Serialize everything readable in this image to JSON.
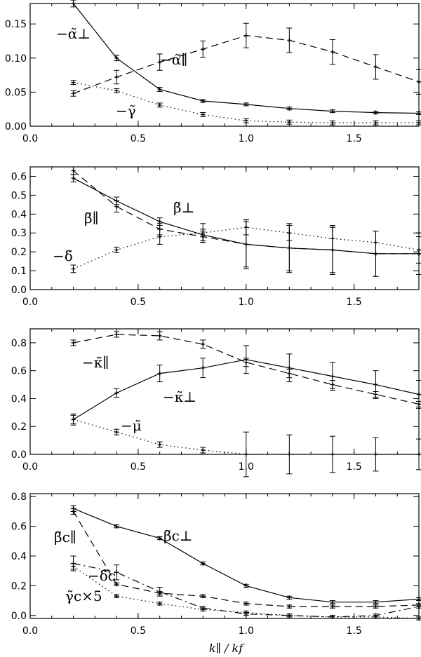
{
  "figure": {
    "xlabel": "k∥ / kf"
  },
  "chart_data": [
    {
      "type": "line",
      "xlim": [
        0.0,
        1.8
      ],
      "ylim": [
        0.0,
        0.18
      ],
      "xticks": [
        0.0,
        0.5,
        1.0,
        1.5
      ],
      "yticks": [
        0.0,
        0.05,
        0.1,
        0.15
      ],
      "ytick_labels": [
        "0.00",
        "0.05",
        "0.10",
        "0.15"
      ],
      "xtick_labels": [
        "0.0",
        "0.5",
        "1.0",
        "1.5"
      ],
      "x": [
        0.2,
        0.4,
        0.6,
        0.8,
        1.0,
        1.2,
        1.4,
        1.6,
        1.8
      ],
      "series": [
        {
          "name": "−α̃⊥",
          "style": "solid",
          "values": [
            0.18,
            0.1,
            0.054,
            0.037,
            0.032,
            0.026,
            0.022,
            0.02,
            0.019
          ],
          "errors": [
            0.005,
            0.004,
            0.003,
            0.002,
            0.002,
            0.002,
            0.002,
            0.002,
            0.002
          ]
        },
        {
          "name": "−α̃∥",
          "style": "dashed",
          "values": [
            0.048,
            0.072,
            0.094,
            0.113,
            0.133,
            0.126,
            0.109,
            0.087,
            0.065
          ],
          "errors": [
            0.004,
            0.01,
            0.012,
            0.012,
            0.018,
            0.018,
            0.018,
            0.018,
            0.018
          ]
        },
        {
          "name": "−γ̃",
          "style": "dotted",
          "values": [
            0.064,
            0.052,
            0.031,
            0.017,
            0.008,
            0.006,
            0.005,
            0.005,
            0.005
          ],
          "errors": [
            0.003,
            0.003,
            0.003,
            0.003,
            0.003,
            0.003,
            0.003,
            0.003,
            0.003
          ]
        }
      ],
      "annotations": [
        "−α̃⊥",
        "−α̃∥",
        "−γ̃"
      ]
    },
    {
      "type": "line",
      "xlim": [
        0.0,
        1.8
      ],
      "ylim": [
        0.0,
        0.65
      ],
      "xticks": [
        0.0,
        0.5,
        1.0,
        1.5
      ],
      "yticks": [
        0.0,
        0.1,
        0.2,
        0.3,
        0.4,
        0.5,
        0.6
      ],
      "ytick_labels": [
        "0.0",
        "0.1",
        "0.2",
        "0.3",
        "0.4",
        "0.5",
        "0.6"
      ],
      "xtick_labels": [
        "0.0",
        "0.5",
        "1.0",
        "1.5"
      ],
      "x": [
        0.2,
        0.4,
        0.6,
        0.8,
        1.0,
        1.2,
        1.4,
        1.6,
        1.8
      ],
      "series": [
        {
          "name": "β̃⊥",
          "style": "solid",
          "values": [
            0.59,
            0.47,
            0.36,
            0.29,
            0.24,
            0.22,
            0.21,
            0.19,
            0.19
          ],
          "errors": [
            0.02,
            0.02,
            0.02,
            0.03,
            0.13,
            0.13,
            0.13,
            0.12,
            0.11
          ]
        },
        {
          "name": "β̃∥",
          "style": "dashed",
          "values": [
            0.63,
            0.44,
            0.32,
            0.28,
            0.24,
            0.22,
            0.21,
            0.19,
            0.19
          ],
          "errors": [
            0.02,
            0.03,
            0.03,
            0.03,
            0.12,
            0.12,
            0.12,
            0.12,
            0.11
          ]
        },
        {
          "name": "−δ̃",
          "style": "dotted",
          "values": [
            0.11,
            0.21,
            0.28,
            0.3,
            0.33,
            0.3,
            0.27,
            0.25,
            0.21
          ],
          "errors": [
            0.02,
            0.015,
            0.04,
            0.05,
            0.04,
            0.04,
            0.06,
            0.06,
            0.07
          ]
        }
      ],
      "annotations": [
        "β̃∥",
        "β̃⊥",
        "−δ̃"
      ]
    },
    {
      "type": "line",
      "xlim": [
        0.0,
        1.8
      ],
      "ylim": [
        0.0,
        0.9
      ],
      "xticks": [
        0.0,
        0.5,
        1.0,
        1.5
      ],
      "yticks": [
        0.0,
        0.2,
        0.4,
        0.6,
        0.8
      ],
      "ytick_labels": [
        "0.0",
        "0.2",
        "0.4",
        "0.6",
        "0.8"
      ],
      "xtick_labels": [
        "0.0",
        "0.5",
        "1.0",
        "1.5"
      ],
      "x": [
        0.2,
        0.4,
        0.6,
        0.8,
        1.0,
        1.2,
        1.4,
        1.6,
        1.8
      ],
      "series": [
        {
          "name": "−κ̃⊥",
          "style": "solid",
          "values": [
            0.25,
            0.44,
            0.58,
            0.62,
            0.68,
            0.62,
            0.56,
            0.5,
            0.43
          ],
          "errors": [
            0.04,
            0.03,
            0.06,
            0.07,
            0.1,
            0.1,
            0.1,
            0.1,
            0.1
          ]
        },
        {
          "name": "−κ̃∥",
          "style": "dashed",
          "values": [
            0.8,
            0.86,
            0.85,
            0.79,
            0.66,
            0.58,
            0.5,
            0.43,
            0.36
          ],
          "errors": [
            0.02,
            0.02,
            0.03,
            0.03,
            0.03,
            0.03,
            0.03,
            0.02,
            0.02
          ]
        },
        {
          "name": "−μ̃",
          "style": "dotted",
          "values": [
            0.25,
            0.16,
            0.07,
            0.03,
            0.0,
            0.0,
            0.0,
            0.0,
            0.0
          ],
          "errors": [
            0.03,
            0.02,
            0.02,
            0.02,
            0.16,
            0.14,
            0.13,
            0.12,
            0.11
          ]
        }
      ],
      "annotations": [
        "−κ̃∥",
        "−κ̃⊥",
        "−μ̃"
      ]
    },
    {
      "type": "line",
      "xlim": [
        0.0,
        1.8
      ],
      "ylim": [
        -0.02,
        0.82
      ],
      "xticks": [
        0.0,
        0.5,
        1.0,
        1.5
      ],
      "yticks": [
        0.0,
        0.2,
        0.4,
        0.6,
        0.8
      ],
      "ytick_labels": [
        "0.0",
        "0.2",
        "0.4",
        "0.6",
        "0.8"
      ],
      "xtick_labels": [
        "0.0",
        "0.5",
        "1.0",
        "1.5"
      ],
      "x": [
        0.2,
        0.4,
        0.6,
        0.8,
        1.0,
        1.2,
        1.4,
        1.6,
        1.8
      ],
      "series": [
        {
          "name": "β̃c⊥",
          "style": "solid",
          "values": [
            0.72,
            0.6,
            0.52,
            0.35,
            0.2,
            0.12,
            0.09,
            0.09,
            0.11
          ],
          "errors": [
            0.02,
            0.01,
            0.01,
            0.01,
            0.01,
            0.01,
            0.01,
            0.01,
            0.01
          ]
        },
        {
          "name": "β̃c∥",
          "style": "dashed",
          "values": [
            0.7,
            0.21,
            0.15,
            0.13,
            0.08,
            0.06,
            0.06,
            0.06,
            0.07
          ],
          "errors": [
            0.02,
            0.01,
            0.01,
            0.01,
            0.01,
            0.01,
            0.01,
            0.01,
            0.01
          ]
        },
        {
          "name": "−δ̃c",
          "style": "dash-dot",
          "values": [
            0.35,
            0.29,
            0.16,
            0.05,
            0.01,
            0.0,
            -0.01,
            0.0,
            0.06
          ],
          "errors": [
            0.05,
            0.05,
            0.03,
            0.01,
            0.01,
            0.01,
            0.01,
            0.01,
            0.01
          ]
        },
        {
          "name": "γ̃c×5",
          "style": "dotted",
          "values": [
            0.33,
            0.13,
            0.08,
            0.04,
            0.02,
            0.0,
            -0.01,
            -0.01,
            -0.02
          ],
          "errors": [
            0.02,
            0.01,
            0.01,
            0.01,
            0.01,
            0.01,
            0.01,
            0.01,
            0.01
          ]
        }
      ],
      "annotations": [
        "β̃c∥",
        "β̃c⊥",
        "−δ̃c",
        "γ̃c×5"
      ]
    }
  ]
}
